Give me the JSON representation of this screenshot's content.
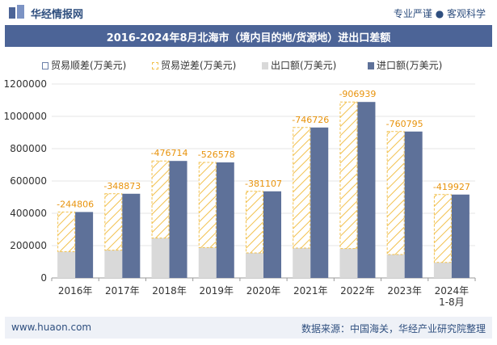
{
  "header": {
    "brand": "华经情报网",
    "tagline": "专业严谨 ● 客观科学",
    "title": "2016-2024年8月北海市（境内目的地/货源地）进出口差额"
  },
  "legend": {
    "surplus": "贸易顺差(万美元)",
    "deficit": "贸易逆差(万美元)",
    "export": "出口额(万美元)",
    "import": "进口额(万美元)"
  },
  "footer": {
    "site": "www.huaon.com",
    "source": "数据来源：中国海关，华经产业研究院整理"
  },
  "colors": {
    "export": "#d9d9d9",
    "import": "#5e7199",
    "deficit_stroke": "#f2c14e",
    "deficit_label": "#e8930c"
  },
  "chart_data": {
    "type": "bar",
    "categories": [
      "2016年",
      "2017年",
      "2018年",
      "2019年",
      "2020年",
      "2021年",
      "2022年",
      "2023年",
      "2024年\n1-8月"
    ],
    "series": [
      {
        "name": "出口额(万美元)",
        "values": [
          163000,
          172000,
          247000,
          188000,
          155000,
          185000,
          182000,
          145000,
          96000
        ]
      },
      {
        "name": "进口额(万美元)",
        "values": [
          408000,
          521000,
          724000,
          715000,
          536000,
          931000,
          1089000,
          906000,
          516000
        ]
      },
      {
        "name": "贸易逆差(万美元)",
        "values": [
          -244806,
          -348873,
          -476714,
          -526578,
          -381107,
          -746726,
          -906939,
          -760795,
          -419927
        ]
      }
    ],
    "deficit_labels": [
      "-244806",
      "-348873",
      "-476714",
      "-526578",
      "-381107",
      "-746726",
      "-906939",
      "-760795",
      "-419927"
    ],
    "ylim": [
      0,
      1200000
    ],
    "yticks": [
      0,
      200000,
      400000,
      600000,
      800000,
      1000000,
      1200000
    ],
    "ytick_labels": [
      "0",
      "200000",
      "400000",
      "600000",
      "800000",
      "1000000",
      "1200000"
    ],
    "grid": true,
    "legend_position": "top"
  }
}
